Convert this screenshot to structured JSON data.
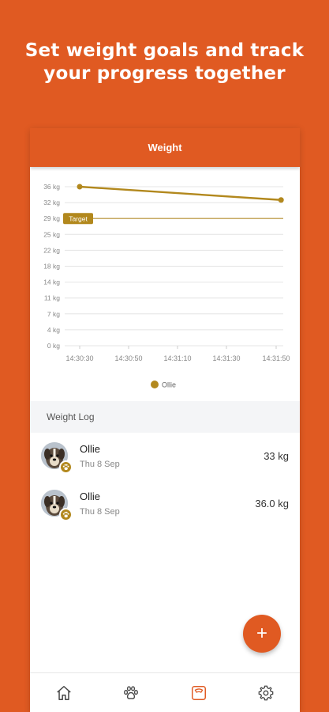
{
  "headline": {
    "line1": "Set weight goals and track",
    "line2": "your progress together"
  },
  "appbar": {
    "title": "Weight"
  },
  "chart_data": {
    "type": "line",
    "y_ticks": [
      "36 kg",
      "32 kg",
      "29 kg",
      "25 kg",
      "22 kg",
      "18 kg",
      "14 kg",
      "11 kg",
      "7 kg",
      "4 kg",
      "0 kg"
    ],
    "y_tick_values": [
      36,
      32.4,
      28.8,
      25.2,
      21.6,
      18,
      14.4,
      10.8,
      7.2,
      3.6,
      0
    ],
    "x_ticks": [
      "14:30:30",
      "14:30:50",
      "14:31:10",
      "14:31:30",
      "14:31:50"
    ],
    "ylim": [
      0,
      36
    ],
    "grid": true,
    "series": [
      {
        "name": "Ollie",
        "color": "#b2881d",
        "points": [
          {
            "x": "14:30:30",
            "y": 36.0
          },
          {
            "x": "14:31:52",
            "y": 33.0
          }
        ]
      }
    ],
    "target": {
      "label": "Target",
      "value": 28.8,
      "color": "#b2881d"
    },
    "legend": {
      "placement": "bottom-center",
      "items": [
        "Ollie"
      ]
    }
  },
  "weight_log": {
    "header": "Weight Log",
    "entries": [
      {
        "name": "Ollie",
        "date": "Thu 8 Sep",
        "weight": "33 kg"
      },
      {
        "name": "Ollie",
        "date": "Thu 8 Sep",
        "weight": "36.0 kg"
      }
    ]
  },
  "fab": {
    "label": "+"
  },
  "nav": {
    "items": [
      {
        "icon": "home-icon",
        "active": false
      },
      {
        "icon": "paw-icon",
        "active": false
      },
      {
        "icon": "scale-icon",
        "active": true
      },
      {
        "icon": "gear-icon",
        "active": false
      }
    ]
  },
  "colors": {
    "brand": "#e05a22",
    "series": "#b2881d",
    "nav_inactive": "#444444"
  }
}
